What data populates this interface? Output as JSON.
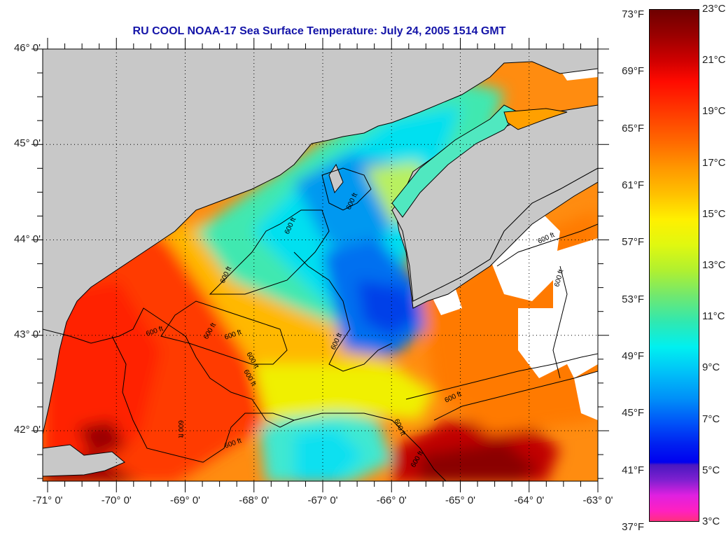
{
  "title": "RU COOL  NOAA-17  Sea Surface Temperature:  July 24, 2005 1514 GMT",
  "map": {
    "lon_range": [
      -71,
      -63
    ],
    "lat_range": [
      41.5,
      46
    ],
    "latitude_labels": [
      {
        "value": 46,
        "label": "46° 0'"
      },
      {
        "value": 45,
        "label": "45° 0'"
      },
      {
        "value": 44,
        "label": "44° 0'"
      },
      {
        "value": 43,
        "label": "43° 0'"
      },
      {
        "value": 42,
        "label": "42° 0'"
      }
    ],
    "longitude_labels": [
      {
        "value": -71,
        "label": "-71° 0'"
      },
      {
        "value": -70,
        "label": "-70° 0'"
      },
      {
        "value": -69,
        "label": "-69° 0'"
      },
      {
        "value": -68,
        "label": "-68° 0'"
      },
      {
        "value": -67,
        "label": "-67° 0'"
      },
      {
        "value": -66,
        "label": "-66° 0'"
      },
      {
        "value": -65,
        "label": "-65° 0'"
      },
      {
        "value": -64,
        "label": "-64° 0'"
      },
      {
        "value": -63,
        "label": "-63° 0'"
      }
    ],
    "contour_label": "600 ft",
    "land_color": "#c8c8c8",
    "cloud_color": "#ffffff"
  },
  "colorbar": {
    "fahrenheit_labels": [
      {
        "value": 73,
        "label": "73°F"
      },
      {
        "value": 69,
        "label": "69°F"
      },
      {
        "value": 65,
        "label": "65°F"
      },
      {
        "value": 61,
        "label": "61°F"
      },
      {
        "value": 57,
        "label": "57°F"
      },
      {
        "value": 53,
        "label": "53°F"
      },
      {
        "value": 49,
        "label": "49°F"
      },
      {
        "value": 45,
        "label": "45°F"
      },
      {
        "value": 41,
        "label": "41°F"
      },
      {
        "value": 37,
        "label": "37°F"
      }
    ],
    "celsius_labels": [
      {
        "value": 23,
        "label": "23°C"
      },
      {
        "value": 21,
        "label": "21°C"
      },
      {
        "value": 19,
        "label": "19°C"
      },
      {
        "value": 17,
        "label": "17°C"
      },
      {
        "value": 15,
        "label": "15°C"
      },
      {
        "value": 13,
        "label": "13°C"
      },
      {
        "value": 11,
        "label": "11°C"
      },
      {
        "value": 9,
        "label": "9°C"
      },
      {
        "value": 7,
        "label": "7°C"
      },
      {
        "value": 5,
        "label": "5°C"
      },
      {
        "value": 3,
        "label": "3°C"
      }
    ],
    "range_c": [
      3,
      23
    ]
  }
}
